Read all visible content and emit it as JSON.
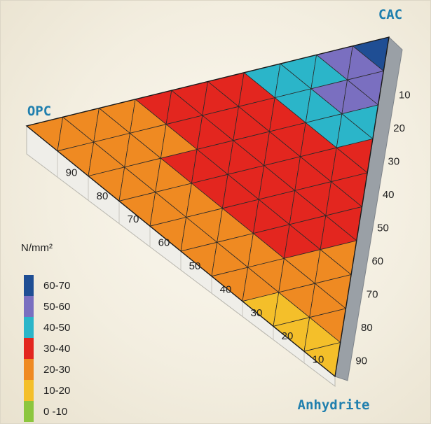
{
  "chart_data": {
    "type": "heatmap",
    "plot": "ternary-surface",
    "vertices": {
      "top": "CAC",
      "left": "OPC",
      "right": "Anhydrite"
    },
    "unit_label": "N/mm²",
    "ticks_left_edge": [
      "90",
      "80",
      "70",
      "60",
      "50",
      "40",
      "30",
      "20",
      "10"
    ],
    "ticks_right_edge": [
      "10",
      "20",
      "30",
      "40",
      "50",
      "60",
      "70",
      "80",
      "90"
    ],
    "legend": [
      {
        "label": "60-70",
        "color": "#1f4e94"
      },
      {
        "label": "50-60",
        "color": "#7a6fc0"
      },
      {
        "label": "40-50",
        "color": "#2bb5c9"
      },
      {
        "label": "30-40",
        "color": "#e3261f"
      },
      {
        "label": "20-30",
        "color": "#ef8a22"
      },
      {
        "label": "10-20",
        "color": "#f4bf2a"
      },
      {
        "label": "0 -10",
        "color": "#8cc63e"
      }
    ],
    "grid_divisions": 10,
    "strength_grid_note_rows_from_cac_vertex": [
      [
        6
      ],
      [
        5,
        5
      ],
      [
        4,
        5,
        4
      ],
      [
        4,
        4,
        4,
        3
      ],
      [
        3,
        3,
        3,
        3,
        3
      ],
      [
        3,
        3,
        3,
        3,
        3,
        3
      ],
      [
        3,
        3,
        3,
        3,
        3,
        3,
        2
      ],
      [
        2,
        2,
        3,
        3,
        3,
        3,
        2,
        2
      ],
      [
        2,
        2,
        2,
        2,
        2,
        2,
        2,
        2,
        2
      ],
      [
        2,
        2,
        2,
        2,
        2,
        2,
        2,
        1,
        1,
        1
      ],
      [
        2,
        2,
        2,
        2,
        2,
        2,
        1,
        1,
        1,
        1,
        1
      ]
    ]
  }
}
